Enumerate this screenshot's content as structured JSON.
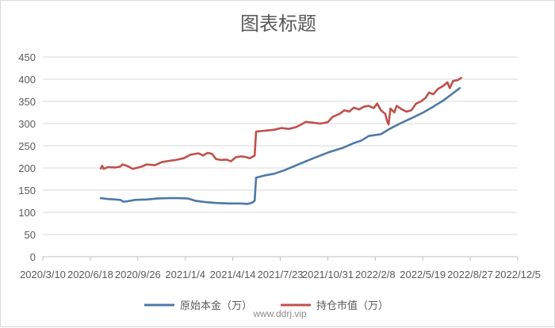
{
  "chart_data": {
    "type": "line",
    "title": "图表标题",
    "ylim": [
      0,
      450
    ],
    "y_ticks": [
      0,
      50,
      100,
      150,
      200,
      250,
      300,
      350,
      400,
      450
    ],
    "x_range": [
      "2020-03-10",
      "2022-12-05"
    ],
    "x_tick_dates": [
      "2020-03-10",
      "2020-06-18",
      "2020-09-26",
      "2021-01-04",
      "2021-04-14",
      "2021-07-23",
      "2021-10-31",
      "2022-02-08",
      "2022-05-19",
      "2022-08-27",
      "2022-12-05"
    ],
    "x_tick_labels": [
      "2020/3/10",
      "2020/6/18",
      "2020/9/26",
      "2021/1/4",
      "2021/4/14",
      "2021/7/23",
      "2021/10/31",
      "2022/2/8",
      "2022/5/19",
      "2022/8/27",
      "2022/12/5"
    ],
    "grid": "horizontal",
    "legend": "bottom",
    "series": [
      {
        "name": "原始本金（万）",
        "color": "#4e79a7",
        "points": [
          [
            "2020-07-10",
            132
          ],
          [
            "2020-07-25",
            130
          ],
          [
            "2020-08-10",
            129
          ],
          [
            "2020-08-20",
            128
          ],
          [
            "2020-08-25",
            125
          ],
          [
            "2020-08-27",
            124
          ],
          [
            "2020-09-05",
            125
          ],
          [
            "2020-09-20",
            128
          ],
          [
            "2020-10-15",
            129
          ],
          [
            "2020-11-05",
            131
          ],
          [
            "2020-12-01",
            132
          ],
          [
            "2020-12-20",
            132
          ],
          [
            "2021-01-10",
            131
          ],
          [
            "2021-01-25",
            126
          ],
          [
            "2021-02-15",
            123
          ],
          [
            "2021-03-10",
            121
          ],
          [
            "2021-04-05",
            120
          ],
          [
            "2021-05-01",
            120
          ],
          [
            "2021-05-15",
            119
          ],
          [
            "2021-05-25",
            122
          ],
          [
            "2021-05-30",
            126
          ],
          [
            "2021-06-02",
            178
          ],
          [
            "2021-06-20",
            183
          ],
          [
            "2021-07-10",
            187
          ],
          [
            "2021-08-01",
            195
          ],
          [
            "2021-09-01",
            209
          ],
          [
            "2021-10-01",
            222
          ],
          [
            "2021-11-01",
            235
          ],
          [
            "2021-12-01",
            245
          ],
          [
            "2021-12-25",
            256
          ],
          [
            "2022-01-10",
            262
          ],
          [
            "2022-01-25",
            272
          ],
          [
            "2022-02-20",
            276
          ],
          [
            "2022-03-10",
            288
          ],
          [
            "2022-04-01",
            300
          ],
          [
            "2022-05-01",
            315
          ],
          [
            "2022-05-20",
            325
          ],
          [
            "2022-06-10",
            338
          ],
          [
            "2022-07-01",
            352
          ],
          [
            "2022-07-20",
            367
          ],
          [
            "2022-08-05",
            380
          ]
        ]
      },
      {
        "name": "持仓市值（万）",
        "color": "#c0504d",
        "points": [
          [
            "2020-07-10",
            199
          ],
          [
            "2020-07-13",
            205
          ],
          [
            "2020-07-16",
            198
          ],
          [
            "2020-07-25",
            202
          ],
          [
            "2020-08-10",
            201
          ],
          [
            "2020-08-20",
            203
          ],
          [
            "2020-08-25",
            208
          ],
          [
            "2020-09-05",
            204
          ],
          [
            "2020-09-15",
            198
          ],
          [
            "2020-10-01",
            202
          ],
          [
            "2020-10-15",
            208
          ],
          [
            "2020-11-01",
            206
          ],
          [
            "2020-11-15",
            213
          ],
          [
            "2020-12-01",
            216
          ],
          [
            "2020-12-15",
            218
          ],
          [
            "2021-01-01",
            222
          ],
          [
            "2021-01-15",
            230
          ],
          [
            "2021-02-01",
            233
          ],
          [
            "2021-02-10",
            228
          ],
          [
            "2021-02-20",
            234
          ],
          [
            "2021-03-01",
            232
          ],
          [
            "2021-03-10",
            220
          ],
          [
            "2021-03-20",
            218
          ],
          [
            "2021-04-01",
            219
          ],
          [
            "2021-04-10",
            215
          ],
          [
            "2021-04-20",
            224
          ],
          [
            "2021-05-01",
            226
          ],
          [
            "2021-05-10",
            225
          ],
          [
            "2021-05-20",
            222
          ],
          [
            "2021-05-30",
            228
          ],
          [
            "2021-06-02",
            282
          ],
          [
            "2021-06-20",
            284
          ],
          [
            "2021-07-10",
            286
          ],
          [
            "2021-07-25",
            290
          ],
          [
            "2021-08-10",
            288
          ],
          [
            "2021-08-25",
            292
          ],
          [
            "2021-09-05",
            298
          ],
          [
            "2021-09-15",
            304
          ],
          [
            "2021-10-01",
            302
          ],
          [
            "2021-10-15",
            300
          ],
          [
            "2021-10-31",
            303
          ],
          [
            "2021-11-10",
            315
          ],
          [
            "2021-11-25",
            322
          ],
          [
            "2021-12-05",
            330
          ],
          [
            "2021-12-15",
            327
          ],
          [
            "2021-12-25",
            336
          ],
          [
            "2022-01-05",
            332
          ],
          [
            "2022-01-15",
            338
          ],
          [
            "2022-01-25",
            340
          ],
          [
            "2022-02-05",
            335
          ],
          [
            "2022-02-12",
            345
          ],
          [
            "2022-02-20",
            330
          ],
          [
            "2022-03-01",
            322
          ],
          [
            "2022-03-05",
            305
          ],
          [
            "2022-03-08",
            298
          ],
          [
            "2022-03-12",
            334
          ],
          [
            "2022-03-20",
            325
          ],
          [
            "2022-03-25",
            340
          ],
          [
            "2022-04-05",
            332
          ],
          [
            "2022-04-15",
            327
          ],
          [
            "2022-04-25",
            330
          ],
          [
            "2022-05-05",
            345
          ],
          [
            "2022-05-15",
            350
          ],
          [
            "2022-05-25",
            358
          ],
          [
            "2022-06-01",
            370
          ],
          [
            "2022-06-10",
            366
          ],
          [
            "2022-06-20",
            378
          ],
          [
            "2022-07-01",
            385
          ],
          [
            "2022-07-10",
            393
          ],
          [
            "2022-07-15",
            380
          ],
          [
            "2022-07-22",
            396
          ],
          [
            "2022-08-01",
            398
          ],
          [
            "2022-08-08",
            403
          ]
        ]
      }
    ]
  },
  "watermark": "www.ddrj.vip"
}
